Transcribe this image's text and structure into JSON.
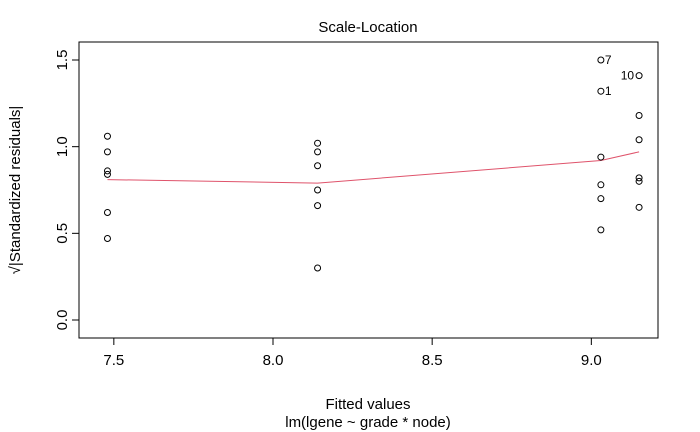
{
  "chart_data": {
    "type": "scatter",
    "title": "Scale-Location",
    "xlabel": "Fitted values",
    "sublabel": "lm(lgene ~ grade * node)",
    "ylabel": "√|Standardized residuals|",
    "xlim": [
      7.4,
      9.2
    ],
    "ylim": [
      0.0,
      1.5
    ],
    "x_ticks": [
      7.5,
      8.0,
      8.5,
      9.0
    ],
    "x_tick_labels": [
      "7.5",
      "8.0",
      "8.5",
      "9.0"
    ],
    "y_ticks": [
      0.0,
      0.5,
      1.0,
      1.5
    ],
    "y_tick_labels": [
      "0.0",
      "0.5",
      "1.0",
      "1.5"
    ],
    "grid": false,
    "points": [
      {
        "x": 7.48,
        "y": 1.06
      },
      {
        "x": 7.48,
        "y": 0.97
      },
      {
        "x": 7.48,
        "y": 0.86
      },
      {
        "x": 7.48,
        "y": 0.84
      },
      {
        "x": 7.48,
        "y": 0.62
      },
      {
        "x": 7.48,
        "y": 0.47
      },
      {
        "x": 8.14,
        "y": 1.02
      },
      {
        "x": 8.14,
        "y": 0.97
      },
      {
        "x": 8.14,
        "y": 0.89
      },
      {
        "x": 8.14,
        "y": 0.75
      },
      {
        "x": 8.14,
        "y": 0.66
      },
      {
        "x": 8.14,
        "y": 0.3
      },
      {
        "x": 9.03,
        "y": 1.5,
        "label": "7"
      },
      {
        "x": 9.03,
        "y": 1.32,
        "label": "1"
      },
      {
        "x": 9.03,
        "y": 0.94
      },
      {
        "x": 9.03,
        "y": 0.78
      },
      {
        "x": 9.03,
        "y": 0.7
      },
      {
        "x": 9.03,
        "y": 0.52
      },
      {
        "x": 9.15,
        "y": 1.41,
        "label": "10"
      },
      {
        "x": 9.15,
        "y": 1.18
      },
      {
        "x": 9.15,
        "y": 1.04
      },
      {
        "x": 9.15,
        "y": 0.82
      },
      {
        "x": 9.15,
        "y": 0.8
      },
      {
        "x": 9.15,
        "y": 0.65
      }
    ],
    "smooth_line": {
      "x": [
        7.48,
        8.14,
        9.03,
        9.15
      ],
      "y": [
        0.81,
        0.79,
        0.92,
        0.97
      ]
    }
  },
  "colors": {
    "points": "#000000",
    "smooth_line": "#DF536B",
    "axes": "#000000",
    "background": "#FFFFFF"
  }
}
